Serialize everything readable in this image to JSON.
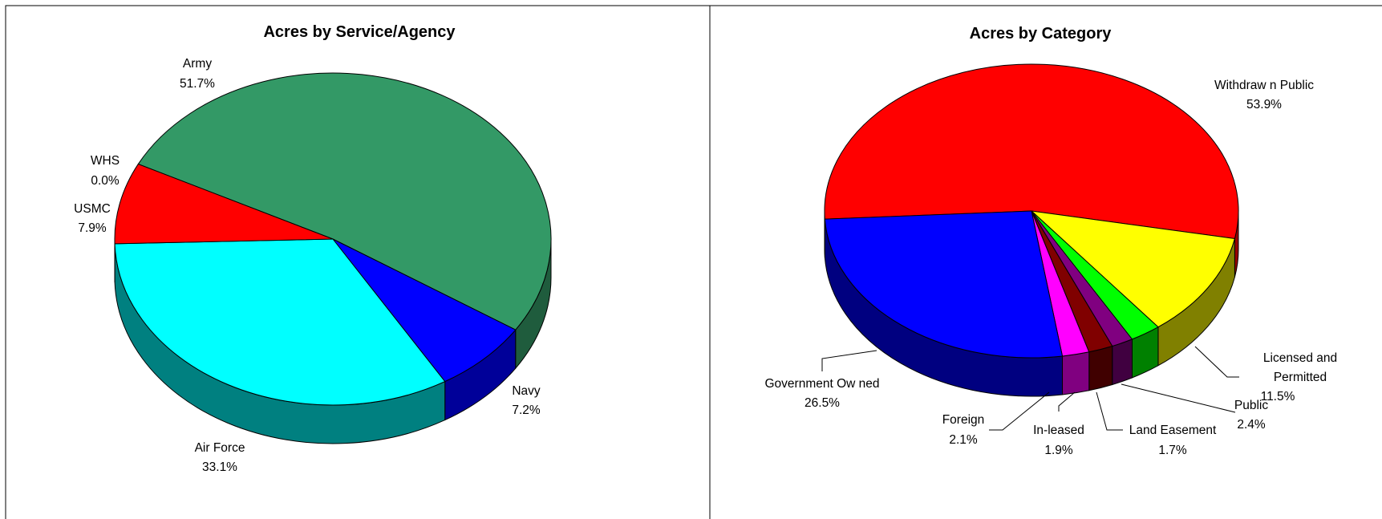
{
  "chart_data": [
    {
      "type": "pie",
      "title": "Acres by Service/Agency",
      "style": "3d-exploded-free",
      "slices": [
        {
          "label": "Army",
          "value": 51.7,
          "value_label": "51.7%",
          "color": "#339966",
          "side_color": "#1f5c3d"
        },
        {
          "label": "Navy",
          "value": 7.2,
          "value_label": "7.2%",
          "color": "#0000ff",
          "side_color": "#000099"
        },
        {
          "label": "Air Force",
          "value": 33.1,
          "value_label": "33.1%",
          "color": "#00ffff",
          "side_color": "#008080"
        },
        {
          "label": "USMC",
          "value": 7.9,
          "value_label": "7.9%",
          "color": "#ff0000",
          "side_color": "#990000"
        },
        {
          "label": "WHS",
          "value": 0.0,
          "value_label": "0.0%",
          "color": "#ffff00",
          "side_color": "#808000"
        }
      ]
    },
    {
      "type": "pie",
      "title": "Acres by Category",
      "style": "3d",
      "slices": [
        {
          "label": "Withdraw n Public",
          "value": 53.9,
          "value_label": "53.9%",
          "color": "#ff0000",
          "side_color": "#990000"
        },
        {
          "label": "Licensed and Permitted",
          "value": 11.5,
          "value_label": "11.5%",
          "color": "#ffff00",
          "side_color": "#808000"
        },
        {
          "label": "Public",
          "value": 2.4,
          "value_label": "2.4%",
          "color": "#00ff00",
          "side_color": "#008000"
        },
        {
          "label": "Land Easement",
          "value": 1.7,
          "value_label": "1.7%",
          "color": "#800080",
          "side_color": "#400040"
        },
        {
          "label": "In-leased",
          "value": 1.9,
          "value_label": "1.9%",
          "color": "#800000",
          "side_color": "#400000"
        },
        {
          "label": "Foreign",
          "value": 2.1,
          "value_label": "2.1%",
          "color": "#ff00ff",
          "side_color": "#800080"
        },
        {
          "label": "Government Ow ned",
          "value": 26.5,
          "value_label": "26.5%",
          "color": "#0000ff",
          "side_color": "#000080"
        }
      ]
    }
  ]
}
